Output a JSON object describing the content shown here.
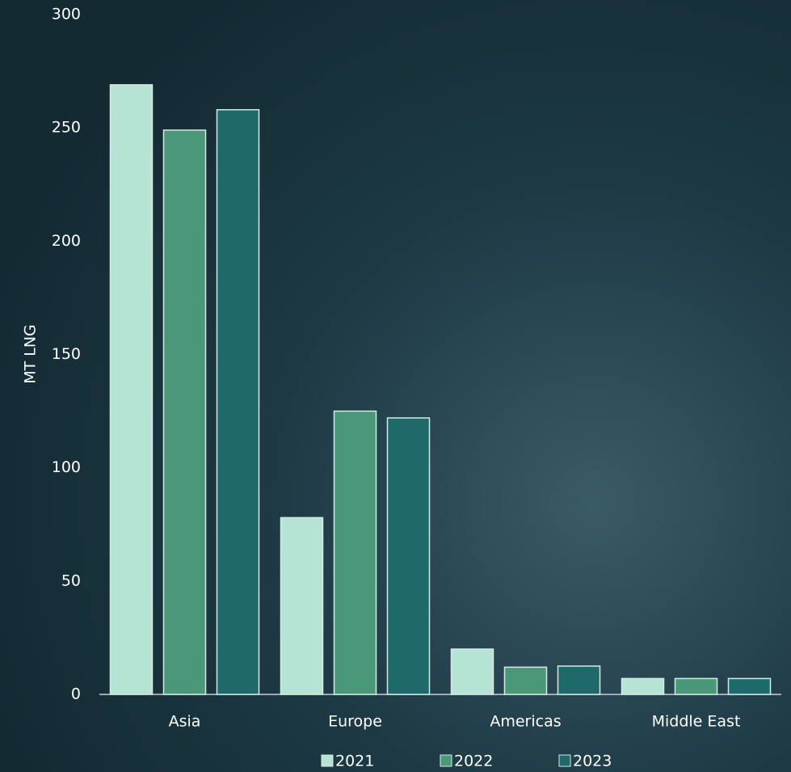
{
  "chart_data": {
    "type": "bar",
    "y_label": "MT LNG",
    "categories": [
      "Asia",
      "Europe",
      "Americas",
      "Middle East"
    ],
    "series": [
      {
        "name": "2021",
        "color": "#b6e4d4",
        "values": [
          269,
          78,
          20,
          7
        ]
      },
      {
        "name": "2022",
        "color": "#4a9877",
        "values": [
          249,
          125,
          12,
          7
        ]
      },
      {
        "name": "2023",
        "color": "#1e6a6a",
        "values": [
          258,
          122,
          12.5,
          7
        ]
      }
    ],
    "ylim": [
      0,
      300
    ],
    "yticks": [
      0,
      50,
      100,
      150,
      200,
      250,
      300
    ],
    "grid": false
  }
}
